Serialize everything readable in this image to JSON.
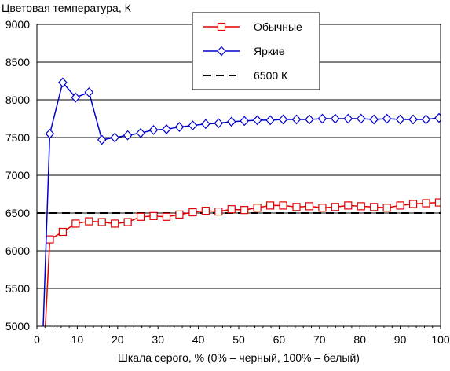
{
  "chart_data": {
    "type": "line",
    "title": "Цветовая температура, К",
    "xlabel": "Шкала серого, % (0% – черный, 100% – белый)",
    "ylabel": "",
    "xlim": [
      0,
      100
    ],
    "ylim": [
      5000,
      9000
    ],
    "xticks": [
      0,
      10,
      20,
      30,
      40,
      50,
      60,
      70,
      80,
      90,
      100
    ],
    "yticks": [
      5000,
      5500,
      6000,
      6500,
      7000,
      7500,
      8000,
      8500,
      9000
    ],
    "grid": "horizontal",
    "legend_position": "top-right",
    "series": [
      {
        "name": "Обычные",
        "color": "#e00000",
        "marker": "square",
        "x": [
          2.0,
          3.2,
          6.4,
          9.6,
          12.9,
          16.1,
          19.3,
          22.5,
          25.7,
          28.9,
          32.1,
          35.3,
          38.6,
          41.8,
          45.0,
          48.2,
          51.4,
          54.6,
          57.8,
          61.0,
          64.3,
          67.5,
          70.7,
          73.9,
          77.1,
          80.3,
          83.5,
          86.7,
          90.0,
          93.2,
          96.4,
          99.6
        ],
        "values": [
          4900,
          6150,
          6250,
          6360,
          6390,
          6380,
          6360,
          6380,
          6450,
          6460,
          6450,
          6480,
          6510,
          6530,
          6520,
          6550,
          6540,
          6570,
          6600,
          6600,
          6580,
          6590,
          6570,
          6580,
          6600,
          6590,
          6580,
          6570,
          6600,
          6620,
          6630,
          6640
        ]
      },
      {
        "name": "Яркие",
        "color": "#0000cc",
        "marker": "diamond",
        "x": [
          1.5,
          3.2,
          6.4,
          9.6,
          12.9,
          16.1,
          19.3,
          22.5,
          25.7,
          28.9,
          32.1,
          35.3,
          38.6,
          41.8,
          45.0,
          48.2,
          51.4,
          54.6,
          57.8,
          61.0,
          64.3,
          67.5,
          70.7,
          73.9,
          77.1,
          80.3,
          83.5,
          86.7,
          90.0,
          93.2,
          96.4,
          99.6
        ],
        "values": [
          4900,
          7550,
          8230,
          8030,
          8100,
          7470,
          7500,
          7530,
          7560,
          7600,
          7610,
          7640,
          7660,
          7680,
          7690,
          7710,
          7720,
          7730,
          7730,
          7740,
          7740,
          7740,
          7750,
          7750,
          7750,
          7750,
          7740,
          7750,
          7740,
          7740,
          7740,
          7760
        ]
      },
      {
        "name": "6500 К",
        "color": "#000000",
        "marker": "none",
        "dash": true,
        "x": [
          0,
          100
        ],
        "values": [
          6500,
          6500
        ]
      }
    ]
  }
}
